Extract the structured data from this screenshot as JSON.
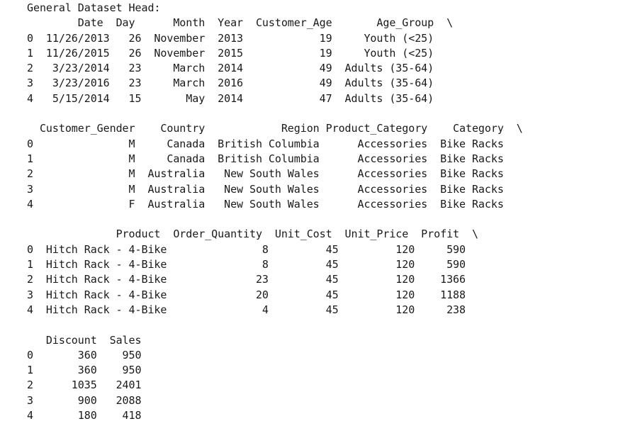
{
  "output": {
    "lines": [
      "General Dataset Head:",
      "        Date  Day      Month  Year  Customer_Age       Age_Group  \\",
      "0  11/26/2013   26  November  2013            19     Youth (<25)   ",
      "1  11/26/2015   26  November  2015            19     Youth (<25)   ",
      "2   3/23/2014   23     March  2014            49  Adults (35-64)   ",
      "3   3/23/2016   23     March  2016            49  Adults (35-64)   ",
      "4   5/15/2014   15       May  2014            47  Adults (35-64)   ",
      "",
      "  Customer_Gender    Country            Region Product_Category    Category  \\",
      "0               M     Canada  British Columbia      Accessories  Bike Racks   ",
      "1               M     Canada  British Columbia      Accessories  Bike Racks   ",
      "2               M  Australia   New South Wales      Accessories  Bike Racks   ",
      "3               M  Australia   New South Wales      Accessories  Bike Racks   ",
      "4               F  Australia   New South Wales      Accessories  Bike Racks   ",
      "",
      "              Product  Order_Quantity  Unit_Cost  Unit_Price  Profit  \\",
      "0  Hitch Rack - 4-Bike               8         45         120     590   ",
      "1  Hitch Rack - 4-Bike               8         45         120     590   ",
      "2  Hitch Rack - 4-Bike              23         45         120    1366   ",
      "3  Hitch Rack - 4-Bike              20         45         120    1188   ",
      "4  Hitch Rack - 4-Bike               4         45         120     238   ",
      "",
      "   Discount  Sales",
      "0       360    950",
      "1       360    950",
      "2      1035   2401",
      "3       900   2088",
      "4       180    418"
    ]
  }
}
